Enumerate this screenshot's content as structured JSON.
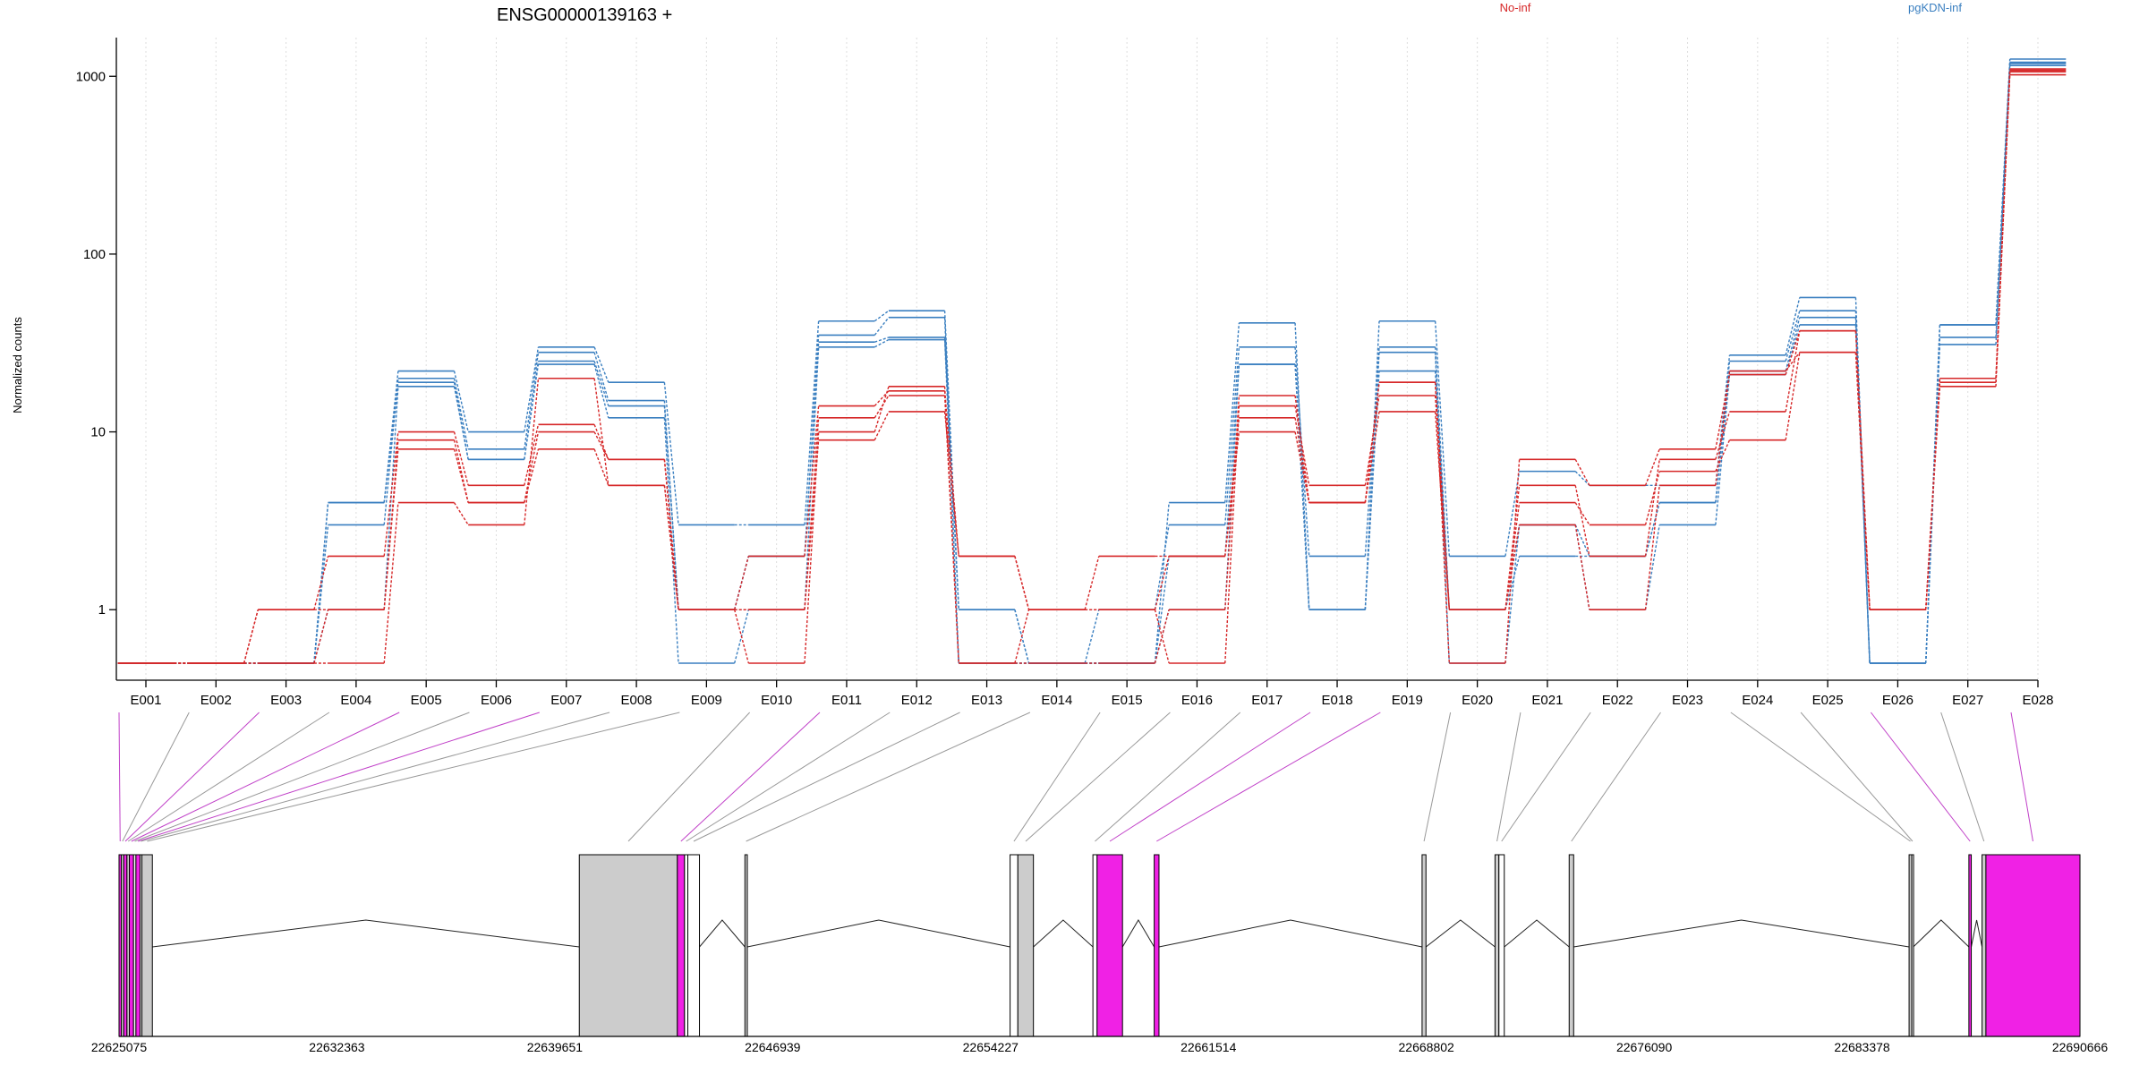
{
  "title": "ENSG00000139163 +",
  "legend": {
    "placement": "top-right",
    "entries": [
      {
        "label": "No-inf",
        "color": "#d62728"
      },
      {
        "label": "pgKDN-inf",
        "color": "#3a7fc0"
      }
    ]
  },
  "colors": {
    "no_inf": "#d62728",
    "pgkdn_inf": "#3a7fc0",
    "exon_highlight": "#f021e5",
    "exon_grey": "#cccccc",
    "connector_grey": "#999999",
    "connector_magenta": "#c040c8"
  },
  "chart_data": {
    "type": "line",
    "title": "ENSG00000139163 +",
    "ylabel": "Normalized counts",
    "xlabel": "",
    "yscale": "log (pseudo-count, floor 0.5)",
    "ylim": [
      0.5,
      1250
    ],
    "yticks": [
      1,
      10,
      100,
      1000
    ],
    "ytick_labels": [
      "1",
      "10",
      "100",
      "1000"
    ],
    "grid": "vertical dotted lines at each exon bin",
    "categories": [
      "E001",
      "E002",
      "E003",
      "E004",
      "E005",
      "E006",
      "E007",
      "E008",
      "E009",
      "E010",
      "E011",
      "E012",
      "E013",
      "E014",
      "E015",
      "E016",
      "E017",
      "E018",
      "E019",
      "E020",
      "E021",
      "E022",
      "E023",
      "E024",
      "E025",
      "E026",
      "E027",
      "E028"
    ],
    "groups": [
      {
        "name": "No-inf",
        "color": "#d62728"
      },
      {
        "name": "pgKDN-inf",
        "color": "#3a7fc0"
      }
    ],
    "series": [
      {
        "group": "No-inf",
        "values": [
          0.5,
          0.5,
          1,
          1,
          8,
          4,
          8,
          5,
          1,
          1,
          9,
          13,
          2,
          1,
          2,
          2,
          10,
          4,
          13,
          1,
          4,
          3,
          6,
          9,
          28,
          1,
          20,
          1020
        ]
      },
      {
        "group": "No-inf",
        "values": [
          0.5,
          0.5,
          1,
          2,
          10,
          5,
          11,
          7,
          1,
          1,
          12,
          16,
          0.5,
          1,
          1,
          0.5,
          14,
          5,
          16,
          1,
          5,
          2,
          7,
          13,
          37,
          1,
          18,
          1060
        ]
      },
      {
        "group": "No-inf",
        "values": [
          0.5,
          0.5,
          0.5,
          0.5,
          4,
          3,
          20,
          5,
          1,
          0.5,
          10,
          18,
          0.5,
          0.5,
          0.5,
          1,
          16,
          4,
          19,
          0.5,
          7,
          5,
          8,
          21,
          37,
          1,
          19,
          1100
        ]
      },
      {
        "group": "No-inf",
        "values": [
          0.5,
          0.5,
          0.5,
          1,
          9,
          4,
          10,
          7,
          1,
          2,
          14,
          17,
          2,
          1,
          1,
          2,
          12,
          4,
          19,
          1,
          3,
          1,
          5,
          22,
          28,
          1,
          20,
          1080
        ]
      },
      {
        "group": "pgKDN-inf",
        "values": [
          0.5,
          0.5,
          0.5,
          4,
          22,
          10,
          30,
          19,
          3,
          3,
          42,
          48,
          1,
          0.5,
          0.5,
          4,
          41,
          1,
          42,
          2,
          6,
          5,
          5,
          27,
          57,
          0.5,
          40,
          1250
        ]
      },
      {
        "group": "pgKDN-inf",
        "values": [
          0.5,
          0.5,
          0.5,
          3,
          20,
          8,
          28,
          15,
          1,
          2,
          35,
          44,
          0.5,
          0.5,
          1,
          3,
          30,
          2,
          30,
          1,
          2,
          2,
          4,
          25,
          48,
          0.5,
          34,
          1200
        ]
      },
      {
        "group": "pgKDN-inf",
        "values": [
          0.5,
          0.5,
          0.5,
          1,
          18,
          7,
          24,
          12,
          0.5,
          1,
          30,
          33,
          0.5,
          0.5,
          0.5,
          1,
          24,
          1,
          22,
          1,
          3,
          1,
          3,
          21,
          40,
          0.5,
          31,
          1150
        ]
      },
      {
        "group": "pgKDN-inf",
        "values": [
          0.5,
          0.5,
          0.5,
          4,
          19,
          7,
          25,
          14,
          1,
          2,
          32,
          34,
          1,
          0.5,
          0.5,
          2,
          24,
          1,
          28,
          0.5,
          3,
          2,
          4,
          22,
          44,
          0.5,
          40,
          1180
        ]
      }
    ]
  },
  "gene_model": {
    "coordinate_labels": [
      "22625075",
      "22632363",
      "22639651",
      "22646939",
      "22654227",
      "22661514",
      "22668802",
      "22676090",
      "22683378",
      "22690666"
    ],
    "genome_range": [
      22625075,
      22690666
    ],
    "exons": [
      {
        "bin": "E001",
        "start": 22625075,
        "end": 22625150,
        "fill": "#f021e5"
      },
      {
        "bin": "E002",
        "start": 22625150,
        "end": 22625230,
        "fill": "#cccccc"
      },
      {
        "bin": "E003",
        "start": 22625230,
        "end": 22625340,
        "fill": "#f021e5"
      },
      {
        "bin": "E004",
        "start": 22625340,
        "end": 22625420,
        "fill": "#cccccc"
      },
      {
        "bin": "E005",
        "start": 22625420,
        "end": 22625560,
        "fill": "#f021e5"
      },
      {
        "bin": "E006",
        "start": 22625560,
        "end": 22625640,
        "fill": "#ffffff"
      },
      {
        "bin": "E007",
        "start": 22625640,
        "end": 22625780,
        "fill": "#f021e5"
      },
      {
        "bin": "E008",
        "start": 22625780,
        "end": 22625840,
        "fill": "#ffffff"
      },
      {
        "bin": "E009",
        "start": 22625840,
        "end": 22626190,
        "fill": "#cccccc"
      },
      {
        "bin": "E010",
        "start": 22640470,
        "end": 22643750,
        "fill": "#cccccc"
      },
      {
        "bin": "E011",
        "start": 22643750,
        "end": 22643990,
        "fill": "#f021e5"
      },
      {
        "bin": "E012",
        "start": 22643990,
        "end": 22644100,
        "fill": "#ffffff"
      },
      {
        "bin": "E013",
        "start": 22644100,
        "end": 22644490,
        "fill": "#ffffff"
      },
      {
        "bin": "E014",
        "start": 22646010,
        "end": 22646090,
        "fill": "#cccccc"
      },
      {
        "bin": "E015",
        "start": 22654880,
        "end": 22655140,
        "fill": "#ffffff"
      },
      {
        "bin": "E016",
        "start": 22655140,
        "end": 22655660,
        "fill": "#cccccc"
      },
      {
        "bin": "E017",
        "start": 22657650,
        "end": 22657790,
        "fill": "#ffffff"
      },
      {
        "bin": "E018",
        "start": 22657790,
        "end": 22658640,
        "fill": "#f021e5"
      },
      {
        "bin": "E019",
        "start": 22659700,
        "end": 22659860,
        "fill": "#f021e5"
      },
      {
        "bin": "E020",
        "start": 22668660,
        "end": 22668790,
        "fill": "#cccccc"
      },
      {
        "bin": "E021",
        "start": 22671100,
        "end": 22671230,
        "fill": "#cccccc"
      },
      {
        "bin": "E022",
        "start": 22671230,
        "end": 22671410,
        "fill": "#ffffff"
      },
      {
        "bin": "E023",
        "start": 22673580,
        "end": 22673730,
        "fill": "#cccccc"
      },
      {
        "bin": "E024",
        "start": 22684950,
        "end": 22685040,
        "fill": "#cccccc"
      },
      {
        "bin": "E025",
        "start": 22685040,
        "end": 22685090,
        "fill": "#ffffff"
      },
      {
        "bin": "E026",
        "start": 22686950,
        "end": 22687030,
        "fill": "#f021e5"
      },
      {
        "bin": "E027",
        "start": 22687390,
        "end": 22687520,
        "fill": "#cccccc"
      },
      {
        "bin": "E028",
        "start": 22687520,
        "end": 22690666,
        "fill": "#f021e5"
      }
    ]
  }
}
